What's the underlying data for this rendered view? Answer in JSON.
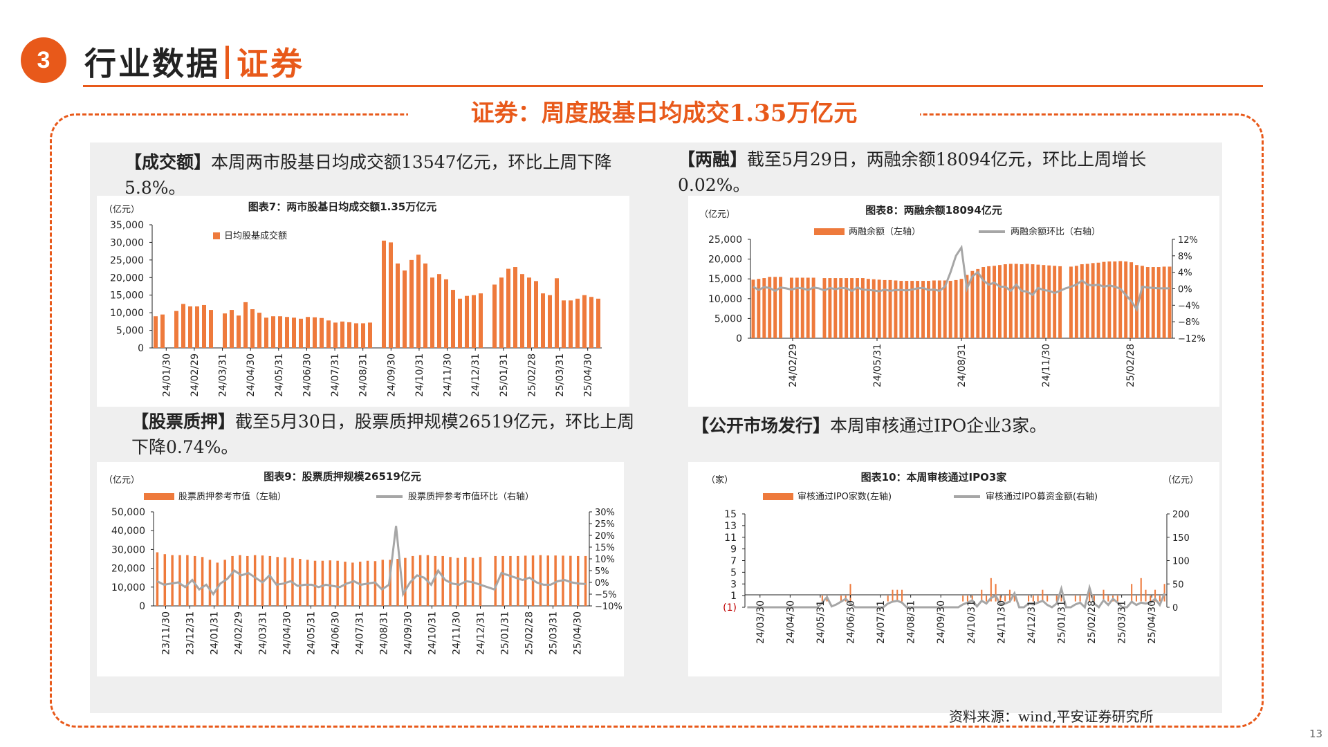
{
  "header": {
    "number": "3",
    "title": "行业数据",
    "subtitle": "证券"
  },
  "section_title": "证券：周度股基日均成交1.35万亿元",
  "paragraphs": {
    "turnover": {
      "tag": "【成交额】",
      "text": "本周两市股基日均成交额13547亿元，环比上周下降5.8%。"
    },
    "margin": {
      "tag": "【两融】",
      "text": "截至5月29日，两融余额18094亿元，环比上周增长0.02%。"
    },
    "pledge": {
      "tag": "【股票质押】",
      "text": "截至5月30日，股票质押规模26519亿元，环比上周下降0.74%。"
    },
    "ipo": {
      "tag": "【公开市场发行】",
      "text": "本周审核通过IPO企业3家。"
    }
  },
  "source": "资料来源：wind,平安证券研究所",
  "page_number": "13",
  "colors": {
    "accent": "#e8591a",
    "bar": "#ee7a3c",
    "line": "#a6a6a6",
    "neg": "#c00000"
  },
  "chart_data": [
    {
      "id": "chart7",
      "type": "bar",
      "title": "图表7：两市股基日均成交额1.35万亿元",
      "unit_left": "（亿元）",
      "legend": [
        "日均股基成交额"
      ],
      "ylim": [
        0,
        35000
      ],
      "yticks": [
        "0",
        "5,000",
        "10,000",
        "15,000",
        "20,000",
        "25,000",
        "30,000",
        "35,000"
      ],
      "xticks": [
        "24/01/30",
        "24/02/29",
        "24/03/31",
        "24/04/30",
        "24/05/31",
        "24/06/30",
        "24/07/31",
        "24/08/31",
        "24/09/30",
        "24/10/31",
        "24/11/30",
        "24/12/31",
        "25/01/31",
        "25/02/28",
        "25/03/31",
        "25/04/30"
      ],
      "values": [
        9000,
        9500,
        null,
        10500,
        12500,
        11800,
        11800,
        12200,
        10800,
        null,
        9800,
        10800,
        9200,
        13000,
        11000,
        10000,
        8600,
        9000,
        9000,
        8800,
        8600,
        8300,
        8800,
        8700,
        8500,
        7800,
        7200,
        7500,
        7300,
        7000,
        7000,
        7200,
        null,
        30500,
        30000,
        24000,
        22000,
        25000,
        26500,
        24000,
        20000,
        21000,
        19500,
        16500,
        14000,
        14800,
        15000,
        15500,
        null,
        18000,
        20000,
        22500,
        23000,
        21000,
        20000,
        19000,
        15500,
        15000,
        19800,
        13500,
        13500,
        14000,
        15000,
        14500,
        14000
      ]
    },
    {
      "id": "chart8",
      "type": "bar+line",
      "title": "图表8：两融余额18094亿元",
      "unit_left": "（亿元）",
      "legend": [
        "两融余额（左轴）",
        "两融余额环比（右轴）"
      ],
      "ylim_left": [
        0,
        25000
      ],
      "yticks_left": [
        "0",
        "5,000",
        "10,000",
        "15,000",
        "20,000",
        "25,000"
      ],
      "ylim_right": [
        -12,
        12
      ],
      "yticks_right": [
        "−12%",
        "−8%",
        "−4%",
        "0%",
        "4%",
        "8%",
        "12%"
      ],
      "xticks": [
        "24/02/29",
        "24/05/31",
        "24/08/31",
        "24/11/30",
        "25/02/28"
      ],
      "bar_values": [
        14800,
        15000,
        15200,
        15500,
        15500,
        15500,
        null,
        15300,
        15300,
        15300,
        15300,
        15300,
        null,
        15200,
        15200,
        15200,
        15200,
        15200,
        15200,
        15200,
        15200,
        15000,
        14900,
        14800,
        14700,
        14700,
        14600,
        14500,
        14500,
        14500,
        14500,
        14500,
        14500,
        14600,
        14600,
        14600,
        14500,
        14700,
        15000,
        16000,
        17000,
        17500,
        18000,
        18200,
        18300,
        18500,
        18700,
        18800,
        18800,
        18700,
        18800,
        18700,
        18600,
        18500,
        18400,
        18300,
        18200,
        null,
        18100,
        18300,
        18700,
        18800,
        19000,
        19100,
        19300,
        19400,
        19400,
        19500,
        19400,
        19200,
        18500,
        18300,
        18000,
        18000,
        18000,
        18100,
        18100
      ],
      "line_values": [
        0.5,
        -0.3,
        0.4,
        0.2,
        -0.5,
        0.3,
        0.1,
        -0.2,
        0.2,
        0.1,
        -0.3,
        0.3,
        0.1,
        -0.4,
        0.2,
        -0.1,
        0.2,
        0.1,
        -0.5,
        0.3,
        -0.2,
        -0.3,
        -0.4,
        -0.6,
        -0.2,
        -0.5,
        -0.3,
        -0.3,
        -0.4,
        -0.2,
        0.1,
        0.2,
        -0.3,
        -0.2,
        -0.5,
        0.5,
        4,
        8,
        10,
        0,
        3,
        4,
        2,
        1,
        1.5,
        0.5,
        0.5,
        -0.5,
        1,
        -0.5,
        -0.7,
        -1.5,
        0.2,
        -0.3,
        -0.5,
        -1,
        -0.5,
        0.1,
        0.5,
        1,
        2,
        1,
        0.8,
        1,
        0.5,
        0.8,
        0.5,
        0,
        -1.5,
        -3,
        -5,
        0.5,
        0.3,
        0.2,
        0.1,
        0.1,
        0.1
      ]
    },
    {
      "id": "chart9",
      "type": "bar+line",
      "title": "图表9：股票质押规模26519亿元",
      "unit_left": "（亿元）",
      "legend": [
        "股票质押参考市值（左轴）",
        "股票质押参考市值环比（右轴）"
      ],
      "ylim_left": [
        0,
        50000
      ],
      "yticks_left": [
        "0",
        "10,000",
        "20,000",
        "30,000",
        "40,000",
        "50,000"
      ],
      "ylim_right": [
        -10,
        30
      ],
      "yticks_right": [
        "−10%",
        "−5%",
        "0%",
        "5%",
        "10%",
        "15%",
        "20%",
        "25%",
        "30%"
      ],
      "xticks": [
        "23/11/30",
        "23/12/31",
        "24/01/31",
        "24/02/29",
        "24/03/31",
        "24/04/30",
        "24/05/31",
        "24/06/30",
        "24/07/31",
        "24/08/31",
        "24/09/30",
        "24/10/31",
        "24/11/30",
        "24/12/31",
        "25/01/31",
        "25/02/28",
        "25/03/31",
        "25/04/30"
      ],
      "bar_values": [
        28500,
        27500,
        27000,
        27000,
        27000,
        26500,
        26000,
        24500,
        23000,
        24500,
        26500,
        27000,
        26500,
        27000,
        26800,
        26500,
        26000,
        25800,
        25500,
        25000,
        24500,
        24000,
        24000,
        24200,
        24000,
        23500,
        23000,
        23500,
        24000,
        23800,
        24500,
        24500,
        25000,
        25500,
        26500,
        27000,
        27000,
        26500,
        26500,
        26000,
        25500,
        26000,
        25500,
        26000,
        null,
        26500,
        26500,
        26500,
        26500,
        26700,
        26800,
        27000,
        26800,
        26800,
        26700,
        26600,
        26500,
        26500
      ],
      "line_values": [
        0.5,
        -1,
        -0.5,
        0,
        -2,
        1,
        -3,
        -1,
        -5,
        -0.5,
        1.5,
        5,
        3,
        4,
        2,
        0,
        3,
        -1,
        -0.5,
        0.5,
        -1.5,
        -1,
        -1,
        -2,
        -1,
        -1.5,
        -2,
        -0.5,
        0.5,
        -1,
        -0.5,
        0,
        -3,
        -1,
        24,
        -5,
        0,
        3,
        2,
        -1,
        5,
        1,
        -0.5,
        -1,
        0.5,
        0,
        -1,
        -2,
        -3,
        4,
        3,
        2,
        1,
        2,
        0,
        -1,
        -1,
        0.5,
        1,
        0,
        -0.5,
        -0.7
      ]
    },
    {
      "id": "chart10",
      "type": "bar+line",
      "title": "图表10：本周审核通过IPO3家",
      "unit_left": "（家）",
      "unit_right": "（亿元）",
      "legend": [
        "审核通过IPO家数(左轴)",
        "审核通过IPO募资金额(右轴)"
      ],
      "ylim_left": [
        -1,
        15
      ],
      "yticks_left": [
        "(1)",
        "1",
        "3",
        "5",
        "7",
        "9",
        "11",
        "13",
        "15"
      ],
      "ylim_right": [
        0,
        200
      ],
      "yticks_right": [
        "0",
        "50",
        "100",
        "150",
        "200"
      ],
      "xticks": [
        "24/03/30",
        "24/04/30",
        "24/05/31",
        "24/06/30",
        "24/07/31",
        "24/08/31",
        "24/09/30",
        "24/10/31",
        "24/11/30",
        "24/12/31",
        "25/01/31",
        "25/02/28",
        "25/03/31",
        "25/04/30"
      ],
      "bar_values": [
        0,
        0,
        0,
        0,
        0,
        0,
        0,
        0,
        0,
        0,
        0,
        0,
        0,
        0,
        0,
        0,
        1,
        1,
        0,
        0,
        1,
        1,
        3,
        0,
        0,
        0,
        0,
        0,
        0,
        0,
        1,
        2,
        2,
        2,
        0,
        0,
        0,
        0,
        0,
        0,
        0,
        0,
        0,
        0,
        0,
        0,
        1,
        1,
        1,
        0,
        2,
        1,
        4,
        3,
        1,
        1,
        2,
        1,
        0,
        0,
        1,
        1,
        1,
        2,
        1,
        0,
        1,
        1,
        0,
        0,
        1,
        1,
        0,
        2,
        1,
        0,
        2,
        1,
        1,
        1,
        0,
        0,
        3,
        1,
        4,
        2,
        1,
        2,
        1,
        3
      ],
      "line_values": [
        0,
        0,
        0,
        0,
        0,
        0,
        0,
        0,
        0,
        0,
        0,
        0,
        0,
        0,
        0,
        0,
        10,
        22,
        2,
        6,
        12,
        18,
        8,
        0,
        0,
        0,
        0,
        0,
        0,
        0,
        8,
        12,
        14,
        10,
        0,
        0,
        0,
        0,
        0,
        0,
        0,
        0,
        0,
        0,
        0,
        0,
        6,
        10,
        15,
        2,
        14,
        8,
        20,
        25,
        6,
        8,
        12,
        30,
        0,
        0,
        8,
        6,
        10,
        14,
        5,
        0,
        8,
        40,
        0,
        0,
        6,
        10,
        0,
        42,
        8,
        0,
        15,
        5,
        18,
        10,
        0,
        0,
        12,
        5,
        10,
        8,
        10,
        18,
        5,
        30
      ]
    }
  ]
}
